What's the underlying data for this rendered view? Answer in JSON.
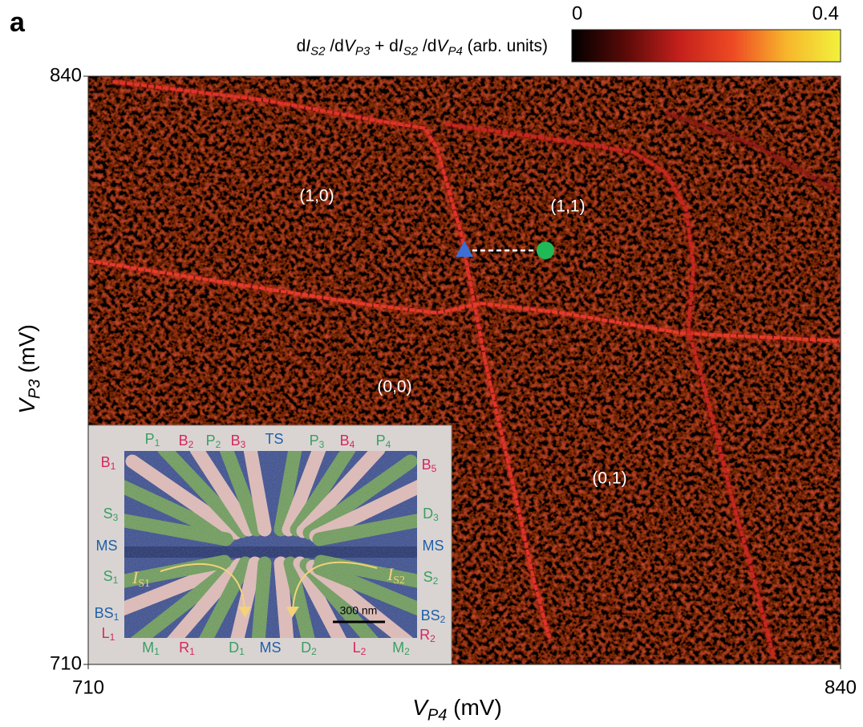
{
  "chart_data": {
    "type": "heatmap",
    "panel_label": "a",
    "xlabel": [
      "V",
      "P4",
      " (mV)"
    ],
    "ylabel": [
      "V",
      "P3",
      " (mV)"
    ],
    "xlim": [
      710,
      840
    ],
    "ylim": [
      710,
      840
    ],
    "xticks": [
      710,
      840
    ],
    "yticks": [
      710,
      840
    ],
    "colorbar_label": [
      "d",
      "I",
      "S2",
      " /d",
      "V",
      "P3",
      " + d",
      "I",
      "S2",
      " /d",
      "V",
      "P4",
      " (arb. units)"
    ],
    "clim": [
      0,
      0.4
    ],
    "cticks": [
      0,
      0.4
    ],
    "colormap": [
      "#000000",
      "#5a0a08",
      "#c4201c",
      "#ee4a24",
      "#f7b62c",
      "#f2f23c"
    ],
    "series": [
      {
        "color": "#e03328",
        "x": [
          714.2,
          740.5,
          759.9,
          768.2,
          770.3,
          772.4,
          774.4,
          776.5,
          778.6,
          781.4,
          784.2,
          786.9,
          789.7
        ],
        "y": [
          838.8,
          834.7,
          830.2,
          828.5,
          824.0,
          814.3,
          805.4,
          791.2,
          777.0,
          761.1,
          745.1,
          729.1,
          715.8
        ]
      },
      {
        "color": "#e63a2a",
        "x": [
          710,
          736.3,
          758.5,
          770.3,
          777.9,
          791.8,
          812.6,
          840
        ],
        "y": [
          799.2,
          793.9,
          789.5,
          787.7,
          789.8,
          787.7,
          783.2,
          781.5
        ]
      },
      {
        "color": "#c8261f",
        "x": [
          771.7,
          791.8,
          804.2,
          809.8,
          813.3,
          814.6,
          813.7,
          816.0,
          818.8,
          821.6,
          825.0,
          828.5
        ],
        "y": [
          829.4,
          825.8,
          823.2,
          818.7,
          810.7,
          798.3,
          784.1,
          773.5,
          759.3,
          745.1,
          729.1,
          711.4
        ]
      },
      {
        "color": "#8e1a14",
        "x": [
          809.8,
          825.0,
          840
        ],
        "y": [
          832.0,
          824.9,
          814.3
        ]
      }
    ],
    "markers": [
      {
        "shape": "triangle",
        "color": "#3c6fd6",
        "x": 775,
        "y": 801.5
      },
      {
        "shape": "circle",
        "color": "#1fb955",
        "x": 789,
        "y": 801.5
      }
    ],
    "annotations": [
      "(1,0)",
      "(1,1)",
      "(0,0)",
      "(0,1)"
    ],
    "inset": {
      "labels": [
        {
          "text": "P",
          "sub": "1",
          "color": "#3a9e63"
        },
        {
          "text": "B",
          "sub": "2",
          "color": "#d8255f"
        },
        {
          "text": "P",
          "sub": "2",
          "color": "#3a9e63"
        },
        {
          "text": "B",
          "sub": "3",
          "color": "#d8255f"
        },
        {
          "text": "TS",
          "sub": null,
          "color": "#1f5fa8"
        },
        {
          "text": "P",
          "sub": "3",
          "color": "#3a9e63"
        },
        {
          "text": "B",
          "sub": "4",
          "color": "#d8255f"
        },
        {
          "text": "P",
          "sub": "4",
          "color": "#3a9e63"
        },
        {
          "text": "B",
          "sub": "1",
          "color": "#d8255f"
        },
        {
          "text": "S",
          "sub": "3",
          "color": "#3a9e63"
        },
        {
          "text": "MS",
          "sub": null,
          "color": "#1f5fa8"
        },
        {
          "text": "S",
          "sub": "1",
          "color": "#3a9e63"
        },
        {
          "text": "BS",
          "sub": "1",
          "color": "#1f5fa8"
        },
        {
          "text": "L",
          "sub": "1",
          "color": "#d8255f"
        },
        {
          "text": "B",
          "sub": "5",
          "color": "#d8255f"
        },
        {
          "text": "D",
          "sub": "3",
          "color": "#3a9e63"
        },
        {
          "text": "MS",
          "sub": null,
          "color": "#1f5fa8"
        },
        {
          "text": "S",
          "sub": "2",
          "color": "#3a9e63"
        },
        {
          "text": "BS",
          "sub": "2",
          "color": "#1f5fa8"
        },
        {
          "text": "R",
          "sub": "2",
          "color": "#d8255f"
        },
        {
          "text": "M",
          "sub": "1",
          "color": "#3a9e63"
        },
        {
          "text": "R",
          "sub": "1",
          "color": "#d8255f"
        },
        {
          "text": "D",
          "sub": "1",
          "color": "#3a9e63"
        },
        {
          "text": "MS",
          "sub": null,
          "color": "#1f5fa8"
        },
        {
          "text": "D",
          "sub": "2",
          "color": "#3a9e63"
        },
        {
          "text": "L",
          "sub": "2",
          "color": "#d8255f"
        },
        {
          "text": "M",
          "sub": "2",
          "color": "#3a9e63"
        }
      ],
      "currents": [
        {
          "text": "I",
          "sub": "S1"
        },
        {
          "text": "I",
          "sub": "S2"
        }
      ],
      "scale_bar": "300 nm"
    }
  }
}
